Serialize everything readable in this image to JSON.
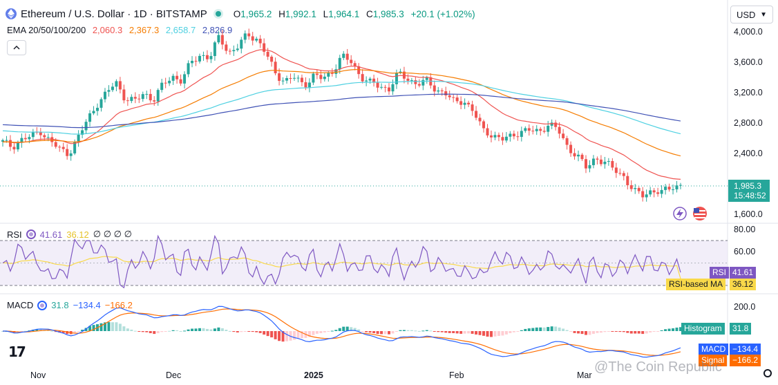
{
  "header": {
    "symbol_title": "Ethereum / U.S. Dollar · 1D · BITSTAMP",
    "open_label": "O",
    "open": "1,965.2",
    "high_label": "H",
    "high": "1,992.1",
    "low_label": "L",
    "low": "1,964.1",
    "close_label": "C",
    "close": "1,985.3",
    "change": "+20.1 (+1.02%)",
    "currency": "USD"
  },
  "ema_legend": {
    "label": "EMA 20/50/100/200",
    "v20": "2,060.3",
    "v50": "2,367.3",
    "v100": "2,658.7",
    "v200": "2,826.9"
  },
  "colors": {
    "up": "#26a69a",
    "down": "#ef5350",
    "ema20": "#ef5350",
    "ema50": "#f57c00",
    "ema100": "#4dd0e1",
    "ema200": "#3f51b5",
    "rsi": "#7e57c2",
    "rsi_ma": "#f9d94a",
    "macd": "#2962ff",
    "signal": "#ff6d00"
  },
  "price_axis": [
    "4,000.0",
    "3,600.0",
    "3,200.0",
    "2,800.0",
    "2,400.0",
    "1,600.0"
  ],
  "last_price": {
    "value": "1,985.3",
    "countdown": "15:48:52"
  },
  "rsi": {
    "label": "RSI",
    "value": "41.61",
    "ma_value": "36.12",
    "extra": "∅ ∅ ∅ ∅",
    "axis": [
      "80.00",
      "60.00"
    ],
    "tag_label": "RSI",
    "ma_tag_label": "RSI-based MA"
  },
  "macd": {
    "label": "MACD",
    "hist": "31.8",
    "macd": "−134.4",
    "signal": "−166.2",
    "axis": [
      "200.0"
    ],
    "hist_tag": "Histogram",
    "macd_tag": "MACD",
    "signal_tag": "Signal"
  },
  "time_axis": [
    "Nov",
    "Dec",
    "2025",
    "Feb",
    "Mar"
  ],
  "watermark": "@The Coin Republic",
  "logo": "17",
  "chart_data": {
    "type": "candlestick",
    "title": "Ethereum / U.S. Dollar · 1D · BITSTAMP",
    "x_labels": [
      "Nov",
      "Dec",
      "2025",
      "Feb",
      "Mar"
    ],
    "ylim": [
      1600,
      4100
    ],
    "close_path": [
      2550,
      2490,
      2580,
      2620,
      2700,
      2560,
      2460,
      2400,
      2600,
      2850,
      3050,
      3180,
      3350,
      3120,
      3080,
      3200,
      3100,
      3300,
      3420,
      3350,
      3600,
      3700,
      3650,
      3950,
      3720,
      3800,
      3980,
      3900,
      3700,
      3450,
      3350,
      3400,
      3300,
      3420,
      3380,
      3480,
      3680,
      3600,
      3420,
      3330,
      3280,
      3250,
      3450,
      3380,
      3320,
      3350,
      3240,
      3200,
      3060,
      3100,
      2950,
      2700,
      2650,
      2580,
      2620,
      2700,
      2700,
      2680,
      2800,
      2700,
      2480,
      2380,
      2200,
      2350,
      2280,
      2180,
      2100,
      1900,
      1850,
      1920,
      1880,
      1960,
      1985
    ],
    "ema20_end": 2060.3,
    "ema50_end": 2367.3,
    "ema100_end": 2658.7,
    "ema200_end": 2826.9,
    "rsi_last": 41.61,
    "rsi_ma_last": 36.12,
    "macd_last": -134.4,
    "signal_last": -166.2,
    "hist_last": 31.8
  }
}
